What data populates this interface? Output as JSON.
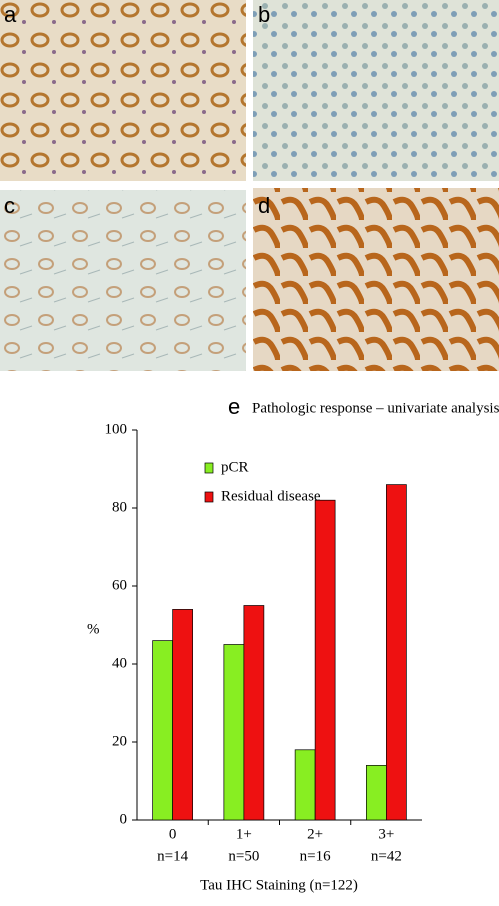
{
  "panels": [
    "a",
    "b",
    "c",
    "d"
  ],
  "chart_data": {
    "type": "bar",
    "panel_label": "e",
    "title": "Pathologic response – univariate analysis",
    "x_label": "Tau IHC Staining (n=122)",
    "y_label": "%",
    "categories": [
      "0",
      "1+",
      "2+",
      "3+"
    ],
    "category_counts": [
      "n=14",
      "n=50",
      "n=16",
      "n=42"
    ],
    "series": [
      {
        "name": "pCR",
        "color": "#88ee22",
        "values": [
          46,
          45,
          18,
          14
        ]
      },
      {
        "name": "Residual disease",
        "color": "#ee1111",
        "values": [
          54,
          55,
          82,
          86
        ]
      }
    ],
    "ylim": [
      0,
      100
    ],
    "yticks": [
      0,
      20,
      40,
      60,
      80,
      100
    ],
    "legend": "upper left"
  }
}
